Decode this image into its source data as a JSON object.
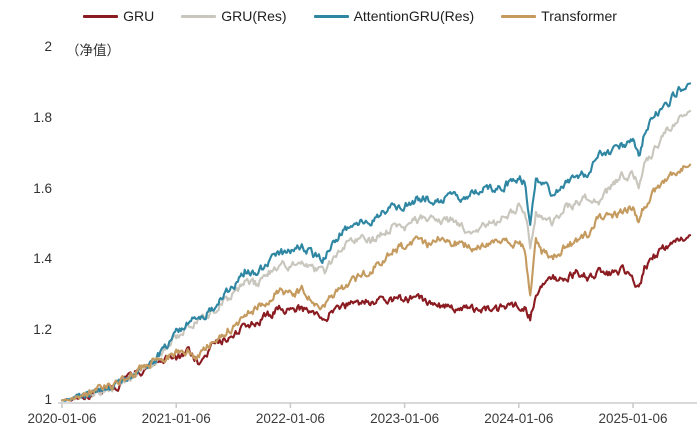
{
  "legend": [
    {
      "label": "GRU",
      "color": "#8a1b21"
    },
    {
      "label": "GRU(Res)",
      "color": "#c8c6bd"
    },
    {
      "label": "AttentionGRU(Res)",
      "color": "#2e86a3"
    },
    {
      "label": "Transformer",
      "color": "#c49a5e"
    }
  ],
  "chart_data": {
    "type": "line",
    "title": "",
    "ylabel": "（净值）",
    "xlabel": "",
    "ylim": [
      1,
      2
    ],
    "y_ticks": [
      1,
      1.2,
      1.4,
      1.6,
      1.8,
      2
    ],
    "x_tick_labels": [
      "2020-01-06",
      "2021-01-06",
      "2022-01-06",
      "2023-01-06",
      "2024-01-06",
      "2025-01-06"
    ],
    "x_unit": "years since 2020-01-06, daily net value curves",
    "grid": false,
    "legend_position": "top",
    "x": [
      0,
      0.1,
      0.2,
      0.3,
      0.4,
      0.5,
      0.6,
      0.7,
      0.8,
      0.9,
      1,
      1.1,
      1.2,
      1.3,
      1.4,
      1.5,
      1.6,
      1.7,
      1.8,
      1.9,
      2,
      2.1,
      2.2,
      2.3,
      2.4,
      2.5,
      2.6,
      2.7,
      2.8,
      2.9,
      3,
      3.1,
      3.2,
      3.3,
      3.4,
      3.5,
      3.6,
      3.7,
      3.8,
      3.9,
      4,
      4.05,
      4.1,
      4.15,
      4.2,
      4.3,
      4.4,
      4.5,
      4.6,
      4.7,
      4.8,
      4.9,
      5,
      5.05,
      5.1,
      5.2,
      5.3,
      5.4,
      5.5
    ],
    "series": [
      {
        "name": "GRU",
        "color": "#8a1b21",
        "values": [
          1.0,
          1.005,
          1.015,
          1.025,
          1.035,
          1.045,
          1.065,
          1.085,
          1.105,
          1.115,
          1.12,
          1.135,
          1.11,
          1.15,
          1.17,
          1.19,
          1.21,
          1.22,
          1.24,
          1.26,
          1.258,
          1.262,
          1.245,
          1.235,
          1.258,
          1.27,
          1.278,
          1.28,
          1.285,
          1.288,
          1.288,
          1.29,
          1.28,
          1.27,
          1.262,
          1.255,
          1.26,
          1.255,
          1.258,
          1.264,
          1.268,
          1.258,
          1.232,
          1.3,
          1.32,
          1.35,
          1.35,
          1.358,
          1.35,
          1.36,
          1.358,
          1.368,
          1.348,
          1.322,
          1.372,
          1.412,
          1.438,
          1.458,
          1.468
        ]
      },
      {
        "name": "GRU(Res)",
        "color": "#c8c6bd",
        "values": [
          1.0,
          1.005,
          1.015,
          1.025,
          1.035,
          1.048,
          1.068,
          1.088,
          1.108,
          1.14,
          1.18,
          1.21,
          1.228,
          1.242,
          1.278,
          1.3,
          1.338,
          1.328,
          1.36,
          1.388,
          1.38,
          1.398,
          1.372,
          1.362,
          1.418,
          1.44,
          1.458,
          1.45,
          1.47,
          1.488,
          1.492,
          1.51,
          1.518,
          1.5,
          1.51,
          1.488,
          1.47,
          1.498,
          1.502,
          1.528,
          1.552,
          1.54,
          1.442,
          1.538,
          1.522,
          1.505,
          1.545,
          1.558,
          1.578,
          1.56,
          1.6,
          1.632,
          1.64,
          1.608,
          1.668,
          1.718,
          1.762,
          1.8,
          1.82
        ]
      },
      {
        "name": "AttentionGRU(Res)",
        "color": "#2e86a3",
        "values": [
          1.0,
          1.005,
          1.015,
          1.025,
          1.035,
          1.048,
          1.068,
          1.088,
          1.108,
          1.15,
          1.19,
          1.22,
          1.232,
          1.252,
          1.29,
          1.32,
          1.368,
          1.35,
          1.39,
          1.418,
          1.42,
          1.44,
          1.412,
          1.4,
          1.46,
          1.49,
          1.508,
          1.5,
          1.53,
          1.548,
          1.552,
          1.568,
          1.575,
          1.56,
          1.578,
          1.57,
          1.588,
          1.6,
          1.59,
          1.612,
          1.63,
          1.618,
          1.508,
          1.618,
          1.615,
          1.582,
          1.618,
          1.638,
          1.642,
          1.708,
          1.7,
          1.722,
          1.73,
          1.688,
          1.758,
          1.81,
          1.84,
          1.878,
          1.898
        ]
      },
      {
        "name": "Transformer",
        "color": "#c49a5e",
        "values": [
          1.0,
          1.005,
          1.018,
          1.028,
          1.038,
          1.05,
          1.07,
          1.09,
          1.11,
          1.12,
          1.13,
          1.142,
          1.12,
          1.16,
          1.19,
          1.21,
          1.24,
          1.26,
          1.282,
          1.31,
          1.3,
          1.312,
          1.282,
          1.262,
          1.31,
          1.33,
          1.35,
          1.37,
          1.392,
          1.42,
          1.438,
          1.45,
          1.44,
          1.458,
          1.442,
          1.45,
          1.422,
          1.44,
          1.45,
          1.458,
          1.44,
          1.43,
          1.302,
          1.458,
          1.42,
          1.402,
          1.432,
          1.45,
          1.47,
          1.52,
          1.518,
          1.532,
          1.548,
          1.5,
          1.552,
          1.598,
          1.622,
          1.65,
          1.668
        ]
      }
    ]
  },
  "style": {
    "axis_color": "#d9d9d9",
    "background": "#ffffff"
  }
}
